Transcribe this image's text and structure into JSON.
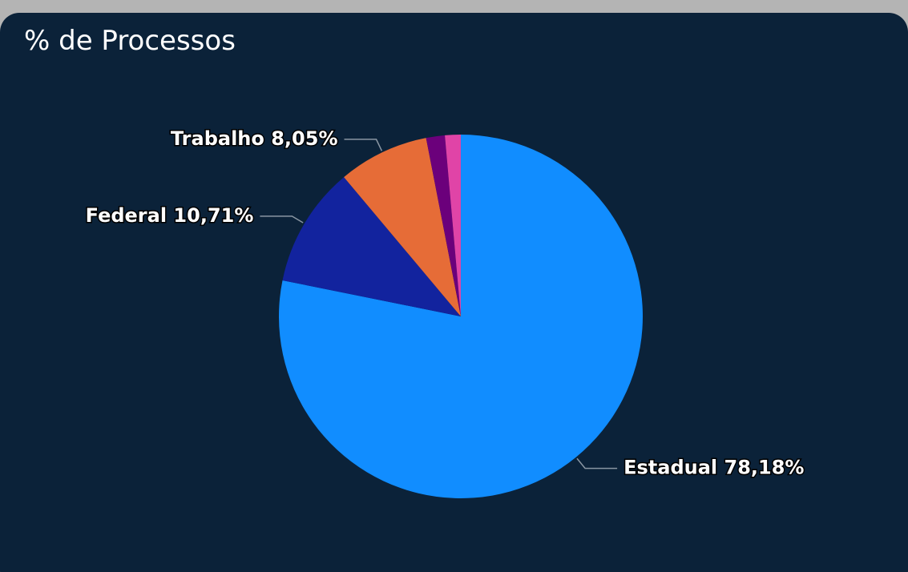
{
  "chart_data": {
    "type": "pie",
    "title": "% de Processos",
    "categories": [
      "Estadual",
      "Federal",
      "Trabalho",
      null,
      null
    ],
    "values": [
      78.18,
      10.71,
      8.05,
      1.66,
      1.4
    ],
    "value_labels": [
      "78,18%",
      "10,71%",
      "8,05%",
      null,
      null
    ],
    "colors": [
      "#118dff",
      "#12239e",
      "#e66c37",
      "#6b007b",
      "#e044a7"
    ]
  }
}
